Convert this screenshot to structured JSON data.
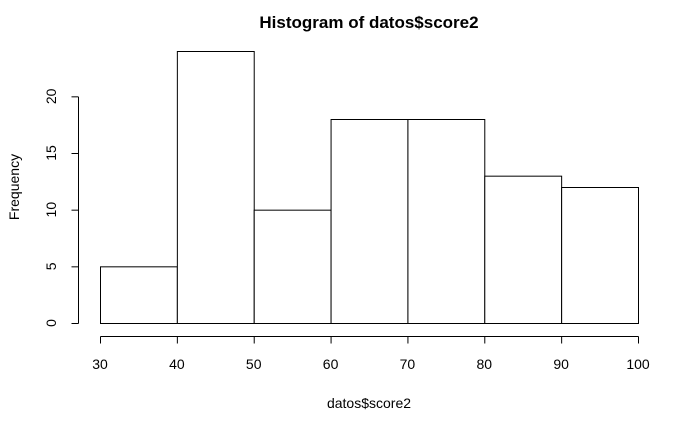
{
  "chart_data": {
    "type": "bar",
    "subtype": "histogram",
    "title": "Histogram of datos$score2",
    "xlabel": "datos$score2",
    "ylabel": "Frequency",
    "bins": [
      {
        "from": 30,
        "to": 40,
        "count": 5
      },
      {
        "from": 40,
        "to": 50,
        "count": 24
      },
      {
        "from": 50,
        "to": 60,
        "count": 10
      },
      {
        "from": 60,
        "to": 70,
        "count": 18
      },
      {
        "from": 70,
        "to": 80,
        "count": 18
      },
      {
        "from": 80,
        "to": 90,
        "count": 13
      },
      {
        "from": 90,
        "to": 100,
        "count": 12
      }
    ],
    "xlim": [
      30,
      100
    ],
    "ylim": [
      0,
      24
    ],
    "x_ticks": [
      30,
      40,
      50,
      60,
      70,
      80,
      90,
      100
    ],
    "y_ticks": [
      0,
      5,
      10,
      15,
      20
    ],
    "grid": false,
    "legend": "none",
    "colors": {
      "bar_fill": "#ffffff",
      "bar_stroke": "#000000"
    }
  }
}
